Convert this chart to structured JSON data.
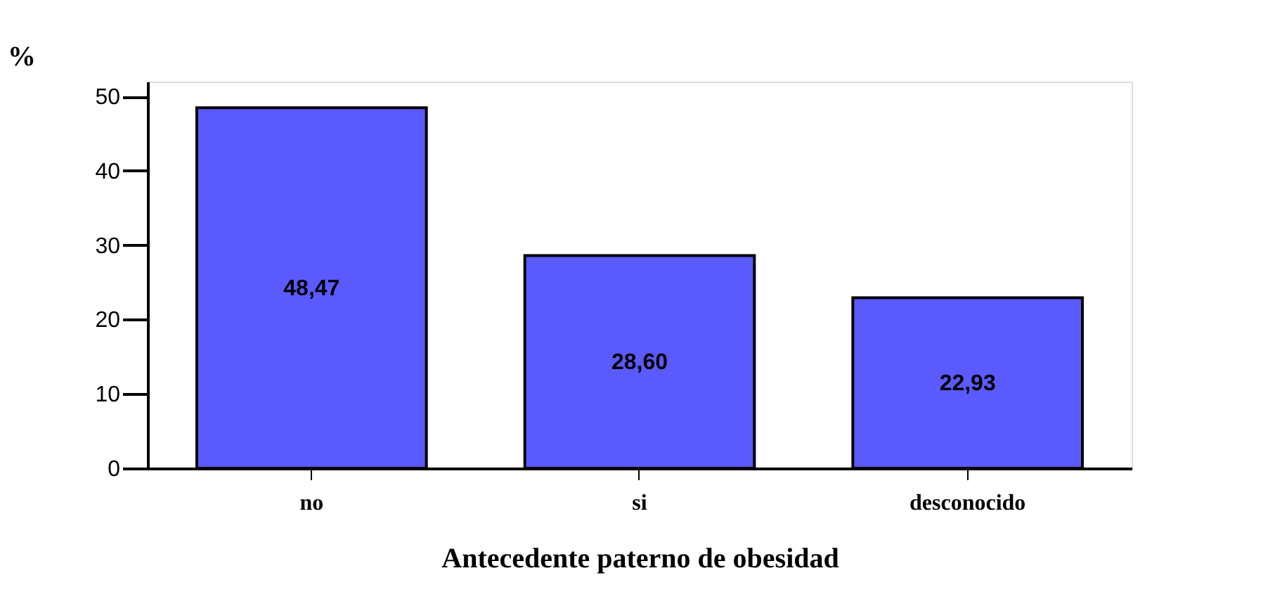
{
  "chart_data": {
    "type": "bar",
    "xlabel": "Antecedente paterno de obesidad",
    "ylabel": "%",
    "categories": [
      "no",
      "si",
      "desconocido"
    ],
    "values": [
      48.47,
      28.6,
      22.93
    ],
    "value_labels": [
      "48,47",
      "28,60",
      "22,93"
    ],
    "color": "#5a5aff",
    "ylim": [
      0,
      52
    ],
    "yticks": [
      0,
      10,
      20,
      30,
      40,
      50
    ],
    "grid": false
  }
}
